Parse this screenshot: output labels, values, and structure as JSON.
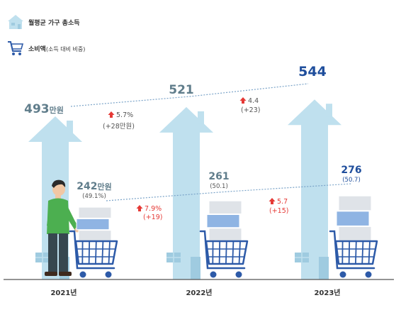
{
  "legend": {
    "income": {
      "label": "월평균 가구 총소득",
      "icon": "house-icon"
    },
    "consumption": {
      "label": "소비액",
      "sub": "(소득 대비 비중)",
      "icon": "shopping-cart-icon"
    }
  },
  "colors": {
    "house": "#bfe0ee",
    "house_window": "#9fcbe0",
    "cart": "#2d5aa8",
    "box_gray": "#dfe3e8",
    "box_blue": "#8fb4e3",
    "income_label": "#607d8b",
    "income_label_latest": "#1f4e9c",
    "increase": "#e53935",
    "dotted_line": "#7aa3c8",
    "axis": "#555555"
  },
  "chart_data": {
    "type": "bar",
    "categories": [
      "2021년",
      "2022년",
      "2023년"
    ],
    "series": [
      {
        "key": "income",
        "values": [
          493,
          521,
          544
        ],
        "value_labels": [
          "493",
          "521",
          "544"
        ],
        "unit_labels": [
          "만원",
          "",
          ""
        ]
      },
      {
        "key": "consumption",
        "values": [
          242,
          261,
          276
        ],
        "value_labels": [
          "242",
          "261",
          "276"
        ],
        "unit_labels": [
          "만원",
          "",
          ""
        ],
        "share_labels": [
          "(49.1%)",
          "(50.1)",
          "(50.7)"
        ],
        "share_values": [
          49.1,
          50.1,
          50.7
        ]
      }
    ],
    "income_changes": [
      {
        "rate": "5.7%",
        "amount": "(+28만원)"
      },
      {
        "rate": "4.4",
        "amount": "(+23)"
      }
    ],
    "consumption_changes": [
      {
        "rate": "7.9%",
        "amount": "(+19)"
      },
      {
        "rate": "5.7",
        "amount": "(+15)"
      }
    ],
    "ylim": [
      0,
      600
    ]
  }
}
